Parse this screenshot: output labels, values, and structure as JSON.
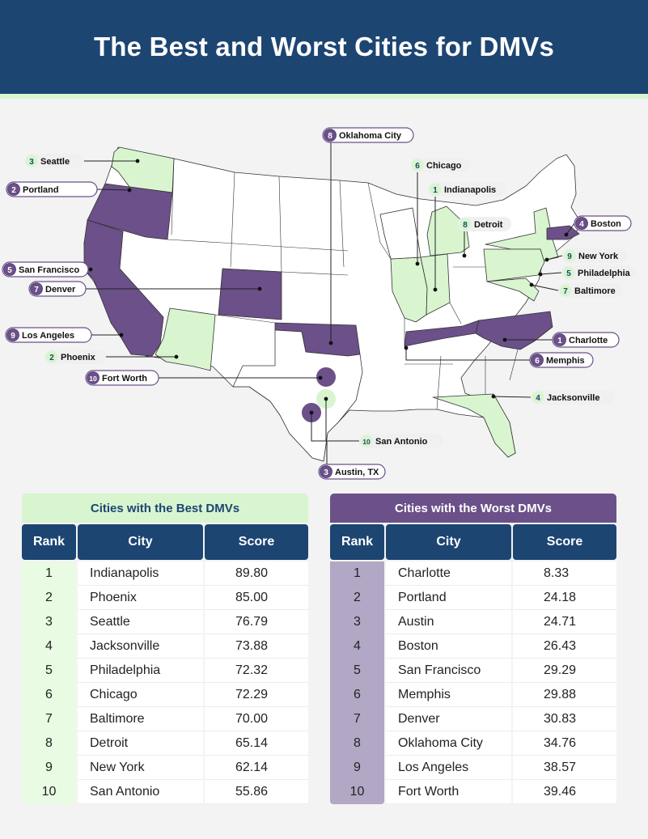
{
  "title": "The Best and Worst Cities for DMVs",
  "colors": {
    "best": "#d8f5cf",
    "worst": "#6b5089",
    "header": "#1d4572"
  },
  "map_labels": [
    {
      "rank": "3",
      "city": "Seattle",
      "group": "best"
    },
    {
      "rank": "2",
      "city": "Portland",
      "group": "worst"
    },
    {
      "rank": "5",
      "city": "San Francisco",
      "group": "worst"
    },
    {
      "rank": "7",
      "city": "Denver",
      "group": "worst"
    },
    {
      "rank": "9",
      "city": "Los Angeles",
      "group": "worst"
    },
    {
      "rank": "2",
      "city": "Phoenix",
      "group": "best"
    },
    {
      "rank": "10",
      "city": "Fort Worth",
      "group": "worst"
    },
    {
      "rank": "8",
      "city": "Oklahoma City",
      "group": "worst"
    },
    {
      "rank": "6",
      "city": "Chicago",
      "group": "best"
    },
    {
      "rank": "1",
      "city": "Indianapolis",
      "group": "best"
    },
    {
      "rank": "8",
      "city": "Detroit",
      "group": "best"
    },
    {
      "rank": "4",
      "city": "Boston",
      "group": "worst"
    },
    {
      "rank": "9",
      "city": "New York",
      "group": "best"
    },
    {
      "rank": "5",
      "city": "Philadelphia",
      "group": "best"
    },
    {
      "rank": "7",
      "city": "Baltimore",
      "group": "best"
    },
    {
      "rank": "1",
      "city": "Charlotte",
      "group": "worst"
    },
    {
      "rank": "6",
      "city": "Memphis",
      "group": "worst"
    },
    {
      "rank": "4",
      "city": "Jacksonville",
      "group": "best"
    },
    {
      "rank": "10",
      "city": "San Antonio",
      "group": "best"
    },
    {
      "rank": "3",
      "city": "Austin, TX",
      "group": "worst"
    }
  ],
  "best_table": {
    "title": "Cities with the Best DMVs",
    "headers": [
      "Rank",
      "City",
      "Score"
    ],
    "rows": [
      [
        "1",
        "Indianapolis",
        "89.80"
      ],
      [
        "2",
        "Phoenix",
        "85.00"
      ],
      [
        "3",
        "Seattle",
        "76.79"
      ],
      [
        "4",
        "Jacksonville",
        "73.88"
      ],
      [
        "5",
        "Philadelphia",
        "72.32"
      ],
      [
        "6",
        "Chicago",
        "72.29"
      ],
      [
        "7",
        "Baltimore",
        "70.00"
      ],
      [
        "8",
        "Detroit",
        "65.14"
      ],
      [
        "9",
        "New York",
        "62.14"
      ],
      [
        "10",
        "San Antonio",
        "55.86"
      ]
    ]
  },
  "worst_table": {
    "title": "Cities with the Worst DMVs",
    "headers": [
      "Rank",
      "City",
      "Score"
    ],
    "rows": [
      [
        "1",
        "Charlotte",
        "8.33"
      ],
      [
        "2",
        "Portland",
        "24.18"
      ],
      [
        "3",
        "Austin",
        "24.71"
      ],
      [
        "4",
        "Boston",
        "26.43"
      ],
      [
        "5",
        "San Francisco",
        "29.29"
      ],
      [
        "6",
        "Memphis",
        "29.88"
      ],
      [
        "7",
        "Denver",
        "30.83"
      ],
      [
        "8",
        "Oklahoma City",
        "34.76"
      ],
      [
        "9",
        "Los Angeles",
        "38.57"
      ],
      [
        "10",
        "Fort Worth",
        "39.46"
      ]
    ]
  }
}
